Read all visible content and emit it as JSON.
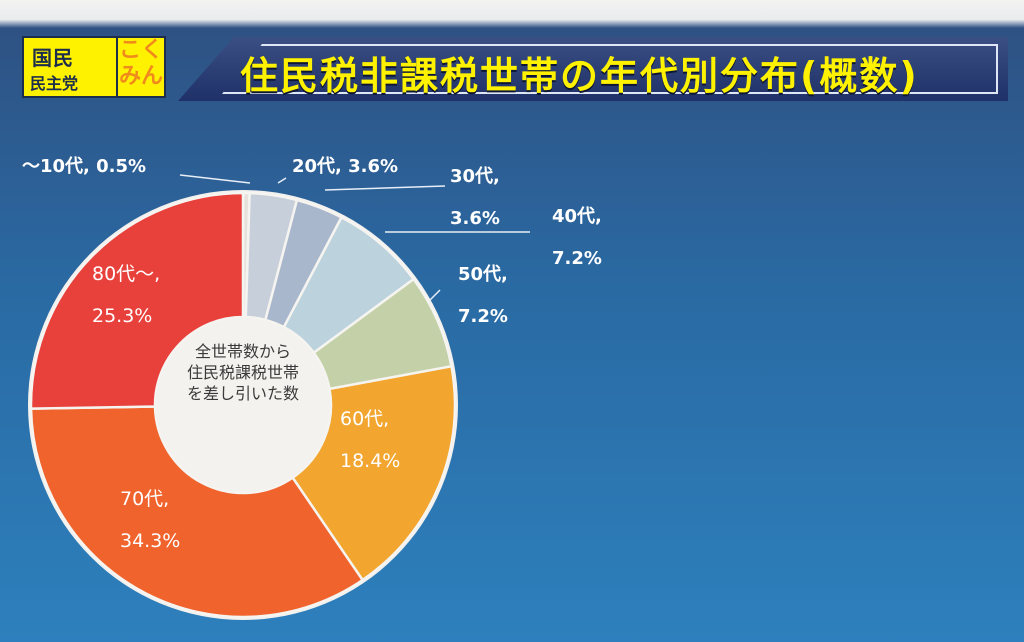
{
  "header": {
    "logo_line1": "国民",
    "logo_line2": "民主党",
    "logo_kokumin_1": "こく",
    "logo_kokumin_2": "みん",
    "title": "住民税非課税世帯の年代別分布(概数)"
  },
  "center_note": [
    "全世帯数から",
    "住民税課税世帯",
    "を差し引いた数"
  ],
  "chart_data": {
    "type": "pie",
    "style": "donut",
    "title": "住民税非課税世帯の年代別分布(概数)",
    "unit": "%",
    "start_angle_deg": 0,
    "direction": "clockwise",
    "slices": [
      {
        "name": "〜10代",
        "value": 0.5,
        "color": "#e6e1dc",
        "label": [
          "〜10代, 0.5%"
        ],
        "label_pos": "outside-top-left"
      },
      {
        "name": "20代",
        "value": 3.6,
        "color": "#c7cfdb",
        "label": [
          "20代, 3.6%"
        ],
        "label_pos": "outside-top"
      },
      {
        "name": "30代",
        "value": 3.6,
        "color": "#a9b7cc",
        "label": [
          "30代,",
          "3.6%"
        ],
        "label_pos": "outside-right"
      },
      {
        "name": "40代",
        "value": 7.2,
        "color": "#bcd3dd",
        "label": [
          "40代,",
          "7.2%"
        ],
        "label_pos": "outside-right"
      },
      {
        "name": "50代",
        "value": 7.2,
        "color": "#c4d1a8",
        "label": [
          "50代,",
          "7.2%"
        ],
        "label_pos": "outside-right"
      },
      {
        "name": "60代",
        "value": 18.4,
        "color": "#f2a52f",
        "label": [
          "60代,",
          "18.4%"
        ],
        "label_pos": "inside"
      },
      {
        "name": "70代",
        "value": 34.3,
        "color": "#f0632c",
        "label": [
          "70代,",
          "34.3%"
        ],
        "label_pos": "inside"
      },
      {
        "name": "80代〜",
        "value": 25.3,
        "color": "#e8413b",
        "label": [
          "80代〜,",
          "25.3%"
        ],
        "label_pos": "inside"
      }
    ],
    "legend": "none"
  }
}
